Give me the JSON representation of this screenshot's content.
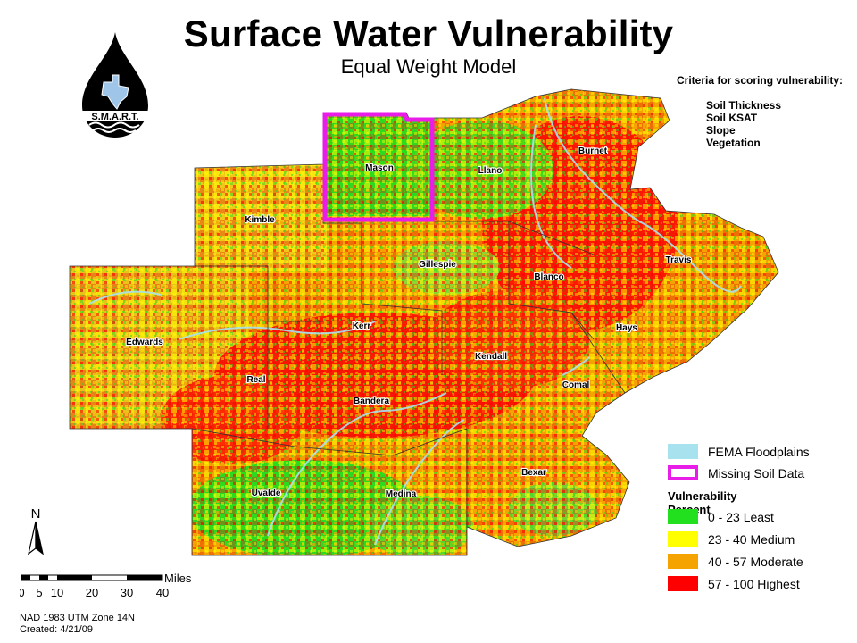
{
  "title": "Surface Water Vulnerability",
  "subtitle": "Equal Weight Model",
  "logo": {
    "text": "S.M.A.R.T.",
    "icon": "water-drop-texas-icon"
  },
  "criteria": {
    "heading": "Criteria for scoring vulnerability:",
    "items": [
      "Soil Thickness",
      "Soil KSAT",
      "Slope",
      "Vegetation"
    ]
  },
  "counties": [
    {
      "name": "Mason"
    },
    {
      "name": "Llano"
    },
    {
      "name": "Burnet"
    },
    {
      "name": "Kimble"
    },
    {
      "name": "Gillespie"
    },
    {
      "name": "Blanco"
    },
    {
      "name": "Travis"
    },
    {
      "name": "Edwards"
    },
    {
      "name": "Kerr"
    },
    {
      "name": "Hays"
    },
    {
      "name": "Kendall"
    },
    {
      "name": "Real"
    },
    {
      "name": "Comal"
    },
    {
      "name": "Bandera"
    },
    {
      "name": "Bexar"
    },
    {
      "name": "Uvalde"
    },
    {
      "name": "Medina"
    }
  ],
  "legend": {
    "floodplains": "FEMA Floodplains",
    "missing": "Missing Soil Data",
    "heading": "Vulnerability Percent",
    "classes": [
      {
        "label": "0 - 23 Least",
        "color": "#22e01e"
      },
      {
        "label": "23 - 40 Medium",
        "color": "#ffff00"
      },
      {
        "label": "40 - 57 Moderate",
        "color": "#f5a300"
      },
      {
        "label": "57 - 100 Highest",
        "color": "#ff0000"
      }
    ],
    "floodplain_color": "#a8e2ef",
    "missing_color": "#e81ee8"
  },
  "north_label": "N",
  "scale": {
    "unit": "Miles",
    "ticks": [
      "0",
      "5",
      "10",
      "20",
      "30",
      "40"
    ]
  },
  "notes": [
    "NAD 1983 UTM Zone 14N",
    "Created: 4/21/09"
  ]
}
